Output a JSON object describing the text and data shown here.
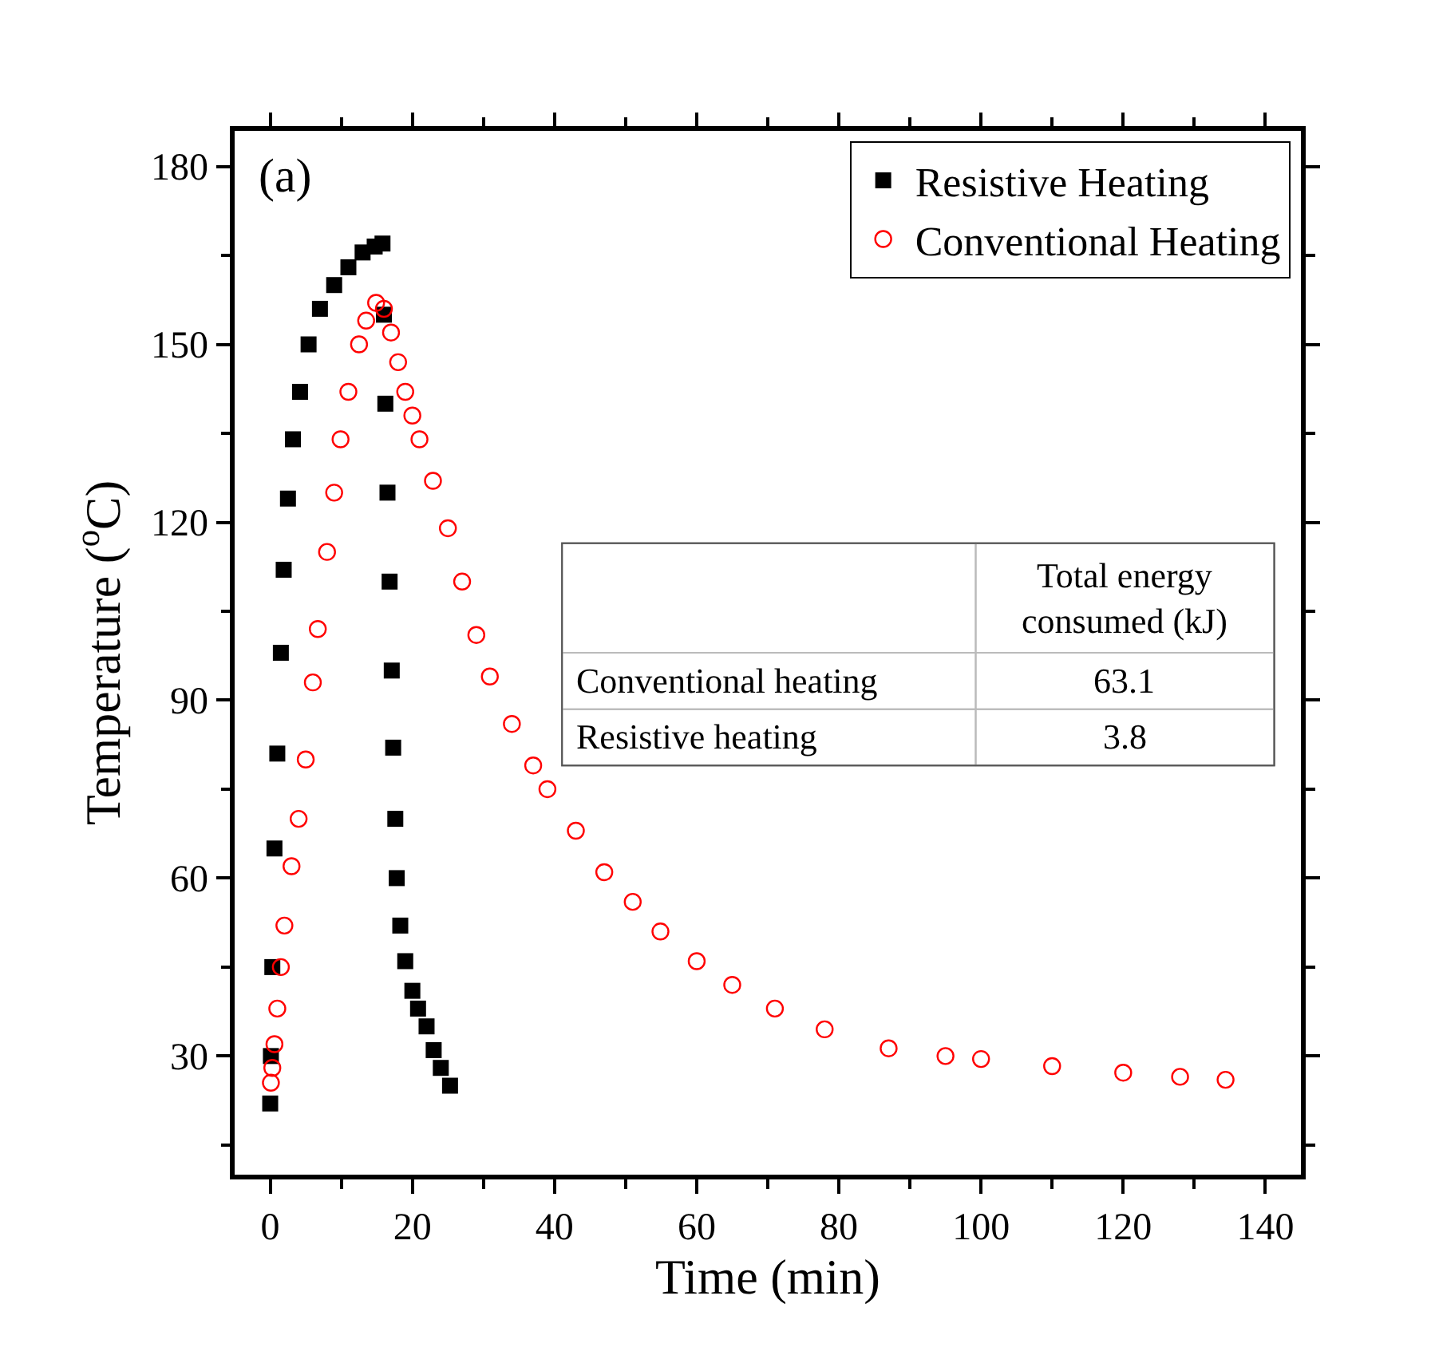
{
  "chart_data": {
    "type": "scatter",
    "xlabel": "Time (min)",
    "ylabel": "Temperature ($^{o}$C)",
    "xlim": [
      -5,
      145
    ],
    "ylim": [
      10,
      186
    ],
    "xticks": [
      0,
      {
        "value": 10,
        "label": null
      },
      20,
      {
        "value": 30,
        "label": null
      },
      40,
      {
        "value": 50,
        "label": null
      },
      60,
      {
        "value": 70,
        "label": null
      },
      80,
      {
        "value": 90,
        "label": null
      },
      100,
      {
        "value": 110,
        "label": null
      },
      120,
      {
        "value": 130,
        "label": null
      },
      140
    ],
    "yticks": [
      {
        "value": 15,
        "label": null
      },
      30,
      {
        "value": 45,
        "label": null
      },
      60,
      {
        "value": 75,
        "label": null
      },
      90,
      {
        "value": 105,
        "label": null
      },
      120,
      {
        "value": 135,
        "label": null
      },
      150,
      {
        "value": 165,
        "label": null
      },
      180
    ],
    "legend": "top right",
    "annotations": [
      "(a)",
      "Total energy\nconsumed (kJ)",
      "Conventional heating",
      "63.1",
      "Resistive heating",
      "3.8"
    ],
    "series": [
      {
        "name": "Resistive Heating",
        "color": "#000000",
        "marker": "square",
        "x": [
          0,
          0.1,
          0.3,
          0.6,
          1.0,
          1.5,
          1.9,
          2.5,
          3.2,
          4.2,
          5.4,
          7,
          9,
          11,
          13,
          14.7,
          15.8,
          16,
          16.2,
          16.5,
          16.8,
          17.1,
          17.3,
          17.6,
          17.8,
          18.3,
          19,
          20,
          20.8,
          22,
          23,
          24,
          25.3
        ],
        "values": [
          22,
          30,
          45,
          65,
          81,
          98,
          112,
          124,
          134,
          142,
          150,
          156,
          160,
          163,
          165.5,
          166.5,
          167,
          155,
          140,
          125,
          110,
          95,
          82,
          70,
          60,
          52,
          46,
          41,
          38,
          35,
          31,
          28,
          25
        ]
      },
      {
        "name": "Conventional Heating",
        "color": "#ff0000",
        "marker": "circle",
        "x": [
          0.1,
          0.3,
          0.6,
          1.0,
          1.5,
          2,
          3,
          4,
          5,
          6,
          6.7,
          8,
          9,
          9.9,
          11,
          12.5,
          13.5,
          14.9,
          16,
          17,
          18,
          19,
          20,
          21,
          22.9,
          25,
          27,
          29,
          30.9,
          34,
          37,
          39,
          43,
          47,
          51,
          54.9,
          60,
          65,
          71,
          78,
          87,
          95,
          100,
          110,
          120,
          128,
          134.4
        ],
        "values": [
          25.5,
          28,
          32,
          38,
          45,
          52,
          62,
          70,
          80,
          93,
          102,
          115,
          125,
          134,
          142,
          150,
          154,
          157,
          156,
          152,
          147,
          142,
          138,
          134,
          127,
          119,
          110,
          101,
          94,
          86,
          79,
          75,
          68,
          61,
          56,
          51,
          46,
          42,
          38,
          34.5,
          31.3,
          30,
          29.5,
          28.3,
          27.2,
          26.5,
          26
        ]
      }
    ]
  }
}
